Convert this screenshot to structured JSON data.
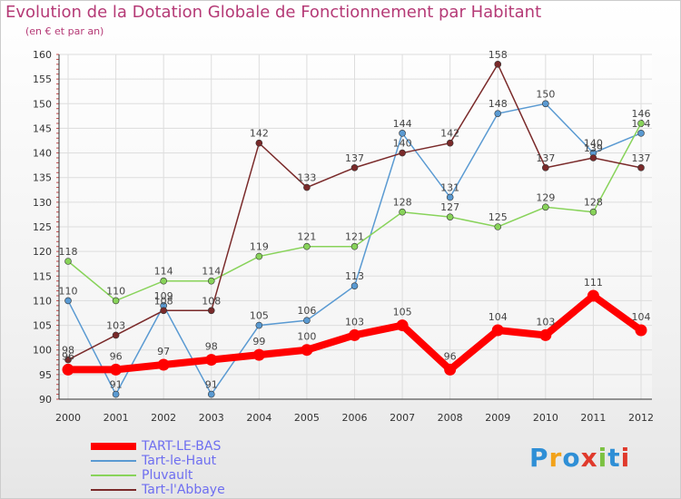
{
  "title": "Evolution de la Dotation Globale de Fonctionnement par Habitant",
  "subtitle": "(en € et par an)",
  "logo": "Proxiti",
  "chart_data": {
    "type": "line",
    "x": [
      "2000",
      "2001",
      "2002",
      "2003",
      "2004",
      "2005",
      "2006",
      "2007",
      "2008",
      "2009",
      "2010",
      "2011",
      "2012"
    ],
    "ylim": [
      90,
      160
    ],
    "yticks": [
      90,
      95,
      100,
      105,
      110,
      115,
      120,
      125,
      130,
      135,
      140,
      145,
      150,
      155,
      160
    ],
    "grid": true,
    "legend_position": "bottom-left",
    "series": [
      {
        "name": "TART-LE-BAS",
        "color": "#ff0000",
        "values": [
          96,
          96,
          97,
          98,
          99,
          100,
          103,
          105,
          96,
          104,
          103,
          111,
          104
        ]
      },
      {
        "name": "Tart-le-Haut",
        "color": "#5a9ad2",
        "values": [
          110,
          91,
          109,
          91,
          105,
          106,
          113,
          144,
          131,
          148,
          150,
          140,
          144
        ]
      },
      {
        "name": "Pluvault",
        "color": "#88d35a",
        "values": [
          118,
          110,
          114,
          114,
          119,
          121,
          121,
          128,
          127,
          125,
          129,
          128,
          146
        ]
      },
      {
        "name": "Tart-l'Abbaye",
        "color": "#7a2a2a",
        "values": [
          98,
          103,
          108,
          108,
          142,
          133,
          137,
          140,
          142,
          158,
          137,
          139,
          137
        ]
      }
    ]
  }
}
